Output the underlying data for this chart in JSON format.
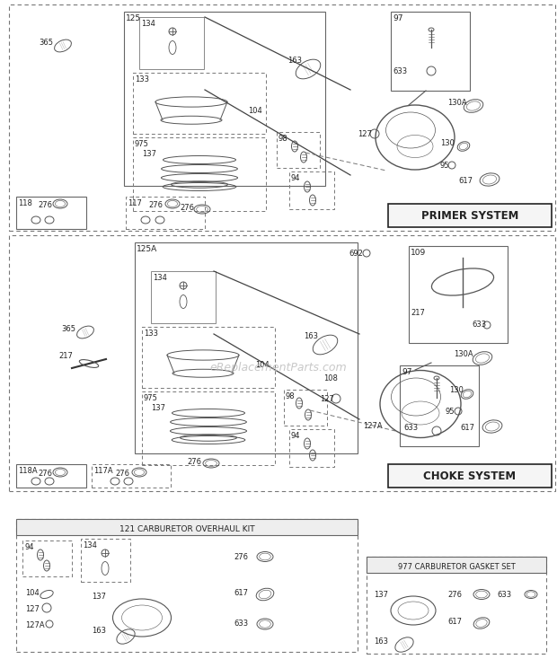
{
  "bg_color": "#ffffff",
  "lc": "#555555",
  "lc_dark": "#222222",
  "watermark": "eReplacementParts.com",
  "s1_label": "PRIMER SYSTEM",
  "s2_label": "CHOKE SYSTEM",
  "s3_label": "121 CARBURETOR OVERHAUL KIT",
  "s4_label": "977 CARBURETOR GASKET SET",
  "fig_w": 6.2,
  "fig_h": 7.44,
  "dpi": 100
}
